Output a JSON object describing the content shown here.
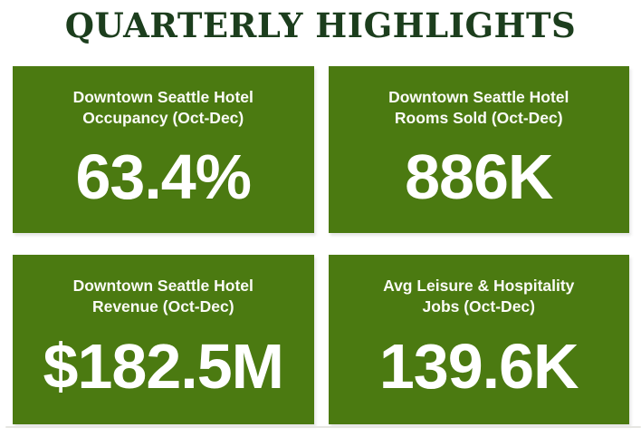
{
  "title": "QUARTERLY HIGHLIGHTS",
  "colors": {
    "card_green": "#4b7a11",
    "title_green": "#1c3e1d",
    "card_text": "#ffffff",
    "divider_gray": "#e6e6e2"
  },
  "cards": [
    {
      "id": "hotel-occupancy",
      "label_lines": [
        "Downtown Seattle Hotel",
        "Occupancy (Oct-Dec)"
      ],
      "value": "63.4%"
    },
    {
      "id": "hotel-rooms-sold",
      "label_lines": [
        "Downtown Seattle Hotel",
        "Rooms Sold (Oct-Dec)"
      ],
      "value": "886K"
    },
    {
      "id": "hotel-revenue",
      "label_lines": [
        "Downtown Seattle Hotel",
        "Revenue (Oct-Dec)"
      ],
      "value": "$182.5M"
    },
    {
      "id": "leisure-hospitality-jobs",
      "label_lines": [
        "Avg Leisure & Hospitality",
        "Jobs (Oct-Dec)"
      ],
      "value": "139.6K"
    }
  ],
  "chart_data": {
    "type": "table",
    "title": "QUARTERLY HIGHLIGHTS",
    "categories": [
      "Downtown Seattle Hotel Occupancy (Oct-Dec)",
      "Downtown Seattle Hotel Rooms Sold (Oct-Dec)",
      "Downtown Seattle Hotel Revenue (Oct-Dec)",
      "Avg Leisure & Hospitality Jobs (Oct-Dec)"
    ],
    "values": [
      "63.4%",
      "886K",
      "$182.5M",
      "139.6K"
    ],
    "numeric_values": [
      63.4,
      886000,
      182500000,
      139600
    ],
    "layout": "2x2 KPI card grid, title centered above, white background"
  }
}
